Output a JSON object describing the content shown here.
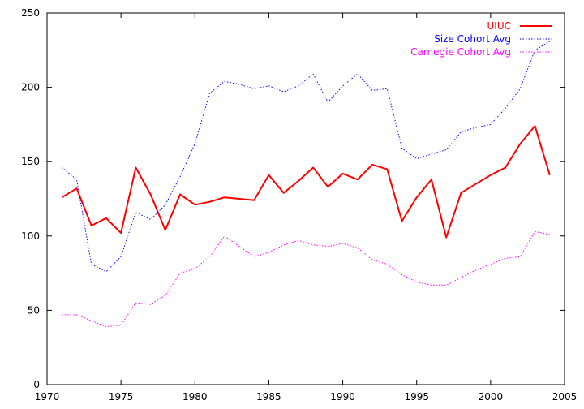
{
  "chart_data": {
    "type": "line",
    "title": "",
    "xlabel": "",
    "ylabel": "",
    "xlim": [
      1970,
      2005
    ],
    "ylim": [
      0,
      250
    ],
    "x_ticks": [
      1970,
      1975,
      1980,
      1985,
      1990,
      1995,
      2000,
      2005
    ],
    "y_ticks": [
      0,
      50,
      100,
      150,
      200,
      250
    ],
    "grid": false,
    "legend_position": "top-right",
    "x": [
      1971,
      1972,
      1973,
      1974,
      1975,
      1976,
      1977,
      1978,
      1979,
      1980,
      1981,
      1982,
      1983,
      1984,
      1985,
      1986,
      1987,
      1988,
      1989,
      1990,
      1991,
      1992,
      1993,
      1994,
      1995,
      1996,
      1997,
      1998,
      1999,
      2000,
      2001,
      2002,
      2003,
      2004
    ],
    "series": [
      {
        "name": "UIUC",
        "color": "#ff0000",
        "style": "solid",
        "values": [
          126,
          132,
          107,
          112,
          102,
          146,
          128,
          104,
          128,
          121,
          123,
          126,
          125,
          124,
          141,
          129,
          137,
          146,
          133,
          142,
          138,
          148,
          145,
          110,
          126,
          138,
          99,
          129,
          135,
          141,
          146,
          162,
          174,
          141
        ]
      },
      {
        "name": "Size Cohort Avg",
        "color": "#0000ff",
        "style": "dotted",
        "values": [
          146,
          138,
          81,
          76,
          86,
          116,
          111,
          121,
          140,
          162,
          196,
          204,
          202,
          199,
          201,
          197,
          201,
          209,
          190,
          201,
          209,
          198,
          199,
          159,
          152,
          155,
          158,
          170,
          173,
          175,
          186,
          199,
          225,
          231
        ]
      },
      {
        "name": "Carnegie Cohort Avg",
        "color": "#ff00ff",
        "style": "dotted",
        "values": [
          47,
          47,
          43,
          39,
          40,
          55,
          54,
          60,
          75,
          78,
          86,
          100,
          93,
          86,
          89,
          94,
          97,
          94,
          93,
          95,
          92,
          84,
          81,
          74,
          69,
          67,
          67,
          72,
          77,
          81,
          85,
          86,
          103,
          101
        ]
      }
    ]
  }
}
